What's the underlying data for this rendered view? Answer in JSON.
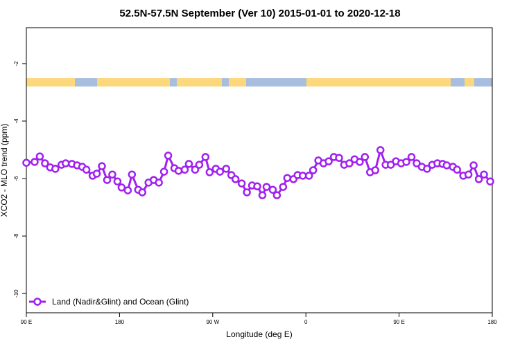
{
  "chart_data": {
    "type": "line",
    "title": "52.5N-57.5N September (Ver 10)   2015-01-01 to 2020-12-18",
    "x_label": "Longitude (deg E)",
    "y_label": "XCO2 - MLO trend (ppm)",
    "xlim": [
      90,
      540
    ],
    "xticks": [
      {
        "value": 90,
        "label": "90 E"
      },
      {
        "value": 180,
        "label": "180"
      },
      {
        "value": 270,
        "label": "90 W"
      },
      {
        "value": 360,
        "label": "0"
      },
      {
        "value": 450,
        "label": "90 E"
      },
      {
        "value": 540,
        "label": "180"
      }
    ],
    "ylim": [
      -10.67,
      -0.75
    ],
    "yticks": [
      -2,
      -4,
      -6,
      -8,
      -10
    ],
    "legend": "bottom-left",
    "x": [
      90,
      98,
      103,
      108,
      113,
      118,
      124,
      128,
      134,
      139,
      144,
      148,
      154,
      158,
      163,
      168,
      173,
      178,
      182,
      188,
      192,
      198,
      202,
      208,
      213,
      218,
      223,
      227,
      233,
      237,
      243,
      247,
      253,
      257,
      263,
      267,
      273,
      277,
      283,
      288,
      292,
      298,
      303,
      308,
      313,
      318,
      322,
      328,
      332,
      338,
      342,
      348,
      352,
      357,
      363,
      367,
      372,
      377,
      382,
      387,
      392,
      397,
      402,
      407,
      412,
      417,
      422,
      427,
      432,
      437,
      442,
      447,
      452,
      457,
      462,
      467,
      472,
      477,
      482,
      487,
      492,
      496,
      502,
      506,
      512,
      517,
      522,
      527,
      532,
      538
    ],
    "series": [
      {
        "name": "Land (Nadir&Glint) and Ocean (Glint)",
        "color": "#a020f0",
        "values": [
          -5.45,
          -5.42,
          -5.23,
          -5.47,
          -5.61,
          -5.66,
          -5.52,
          -5.47,
          -5.49,
          -5.54,
          -5.59,
          -5.69,
          -5.9,
          -5.83,
          -5.57,
          -6.05,
          -5.86,
          -6.1,
          -6.31,
          -6.41,
          -5.86,
          -6.39,
          -6.48,
          -6.14,
          -6.05,
          -6.14,
          -5.76,
          -5.2,
          -5.64,
          -5.73,
          -5.69,
          -5.49,
          -5.69,
          -5.52,
          -5.25,
          -5.78,
          -5.66,
          -5.76,
          -5.66,
          -5.88,
          -6.02,
          -6.17,
          -6.48,
          -6.24,
          -6.27,
          -6.58,
          -6.29,
          -6.39,
          -6.58,
          -6.29,
          -5.98,
          -6.02,
          -5.88,
          -5.9,
          -5.9,
          -5.71,
          -5.37,
          -5.47,
          -5.4,
          -5.25,
          -5.28,
          -5.52,
          -5.47,
          -5.33,
          -5.42,
          -5.25,
          -5.78,
          -5.71,
          -5.01,
          -5.52,
          -5.52,
          -5.4,
          -5.47,
          -5.42,
          -5.25,
          -5.47,
          -5.59,
          -5.66,
          -5.52,
          -5.47,
          -5.49,
          -5.54,
          -5.59,
          -5.69,
          -5.9,
          -5.86,
          -5.54,
          -6.02,
          -5.86,
          -6.1
        ]
      }
    ]
  }
}
